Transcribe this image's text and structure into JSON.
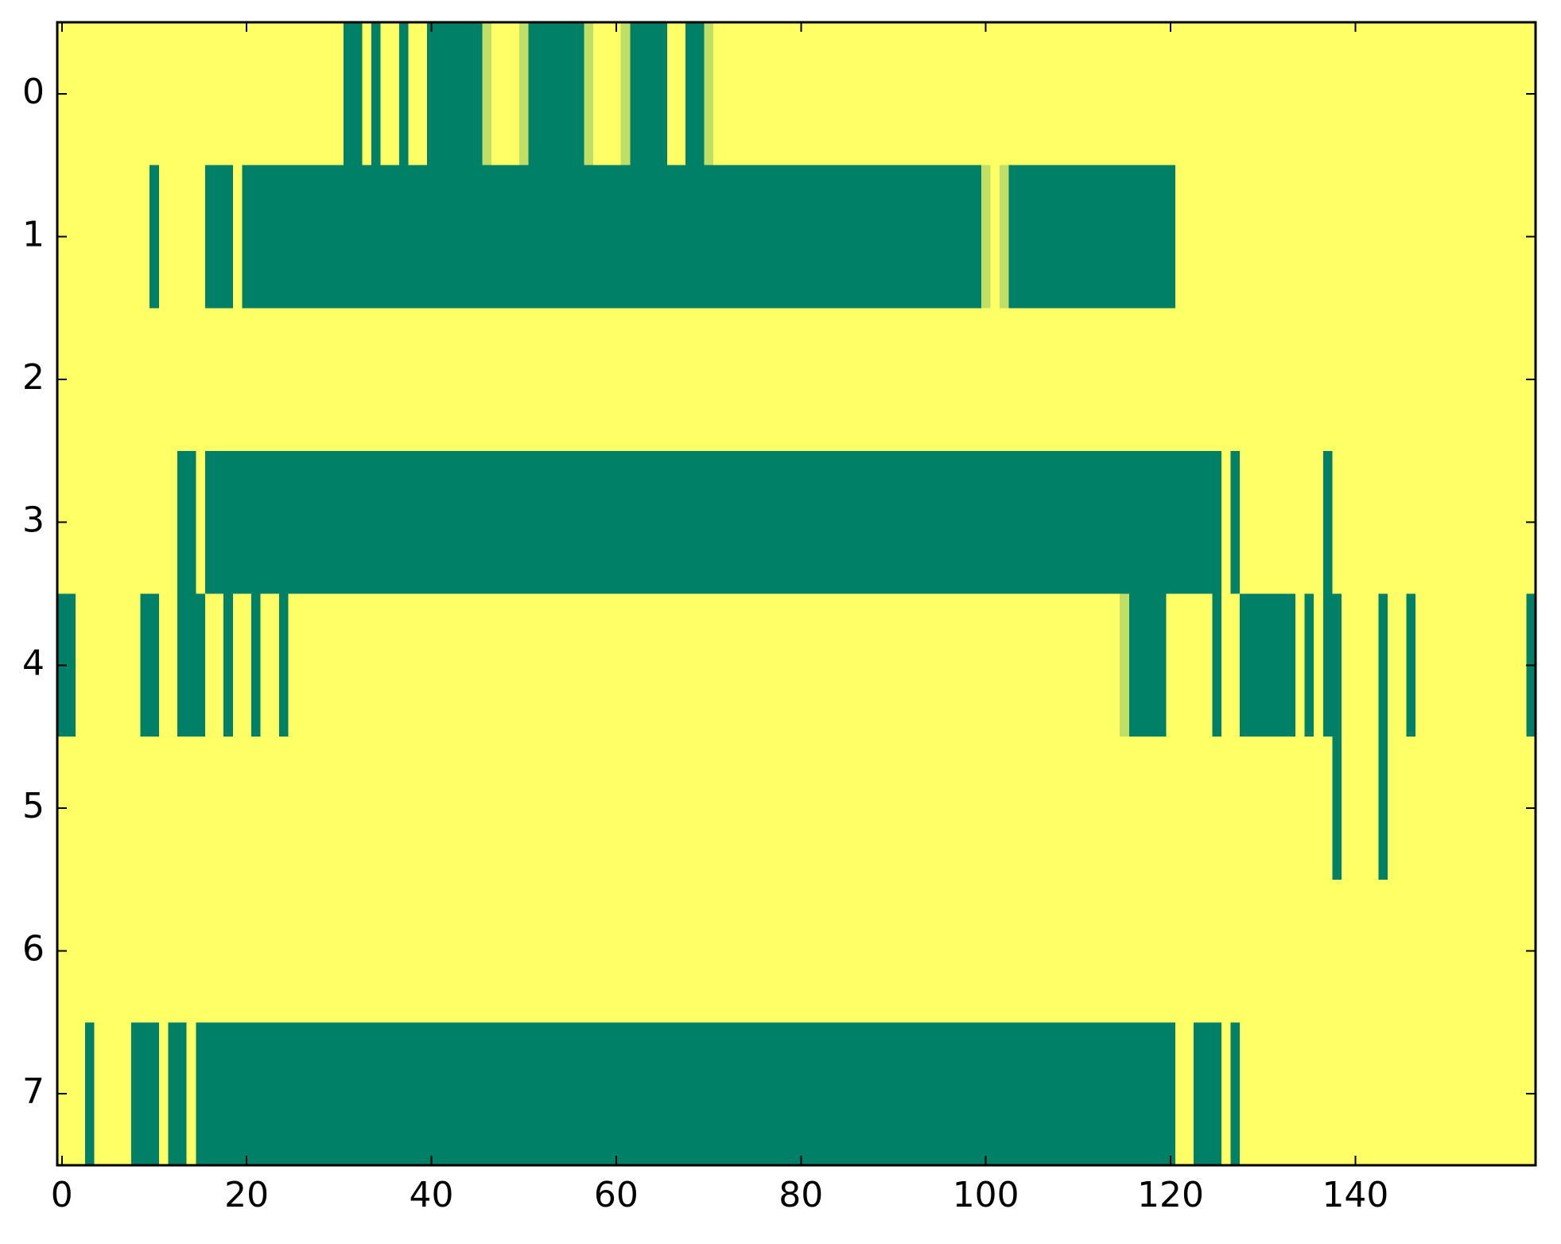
{
  "chart_data": {
    "type": "heatmap",
    "colormap": "summer",
    "xlim": [
      -0.5,
      159.5
    ],
    "ylim": [
      7.5,
      -0.5
    ],
    "xticks": [
      0,
      20,
      40,
      60,
      80,
      100,
      120,
      140
    ],
    "yticks": [
      0,
      1,
      2,
      3,
      4,
      5,
      6,
      7
    ],
    "z": [
      [
        1,
        1,
        1,
        1,
        1,
        1,
        1,
        1,
        1,
        1,
        1,
        1,
        1,
        1,
        1,
        1,
        1,
        1,
        1,
        1,
        1,
        1,
        1,
        1,
        1,
        1,
        1,
        1,
        1,
        1,
        1,
        0,
        0,
        1,
        0,
        1,
        1,
        0,
        1,
        1,
        0,
        0,
        0,
        0,
        0,
        0,
        0.75,
        1,
        1,
        1,
        0.75,
        0,
        0,
        0,
        0,
        0,
        0,
        0.75,
        1,
        1,
        1,
        0.75,
        0,
        0,
        0,
        0,
        1,
        1,
        0,
        0,
        0.75,
        1,
        1,
        1,
        1,
        1,
        1,
        1,
        1,
        1,
        1,
        1,
        1,
        1,
        1,
        1,
        1,
        1,
        1,
        1,
        1,
        1,
        1,
        1,
        1,
        1,
        1,
        1,
        1,
        1,
        1,
        1,
        1,
        1,
        1,
        1,
        1,
        1,
        1,
        1,
        1,
        1,
        1,
        1,
        1,
        1,
        1,
        1,
        1,
        1,
        1,
        1,
        1,
        1,
        1,
        1,
        1,
        1,
        1,
        1,
        1,
        1,
        1,
        1,
        1,
        1,
        1,
        1,
        1,
        1,
        1,
        1,
        1,
        1,
        1,
        1,
        1,
        1,
        1,
        1,
        1,
        1,
        1,
        1,
        1,
        1,
        1,
        1,
        1,
        1
      ],
      [
        1,
        1,
        1,
        1,
        1,
        1,
        1,
        1,
        1,
        1,
        0,
        1,
        1,
        1,
        1,
        1,
        0,
        0,
        0,
        1,
        0,
        0,
        0,
        0,
        0,
        0,
        0,
        0,
        0,
        0,
        0,
        0,
        0,
        0,
        0,
        0,
        0,
        0,
        0,
        0,
        0,
        0,
        0,
        0,
        0,
        0,
        0,
        0,
        0,
        0,
        0,
        0,
        0,
        0,
        0,
        0,
        0,
        0,
        0,
        0,
        0,
        0,
        0,
        0,
        0,
        0,
        0,
        0,
        0,
        0,
        0,
        0,
        0,
        0,
        0,
        0,
        0,
        0,
        0,
        0,
        0,
        0,
        0,
        0,
        0,
        0,
        0,
        0,
        0,
        0,
        0,
        0,
        0,
        0,
        0,
        0,
        0,
        0,
        0,
        0,
        0.75,
        1,
        0.75,
        0,
        0,
        0,
        0,
        0,
        0,
        0,
        0,
        0,
        0,
        0,
        0,
        0,
        0,
        0,
        0,
        0,
        0,
        1,
        1,
        1,
        1,
        1,
        1,
        1,
        1,
        1,
        1,
        1,
        1,
        1,
        1,
        1,
        1,
        1,
        1,
        1,
        1,
        1,
        1,
        1,
        1,
        1,
        1,
        1,
        1,
        1,
        1,
        1,
        1,
        1,
        1,
        1,
        1,
        1,
        1,
        1
      ],
      [
        1,
        1,
        1,
        1,
        1,
        1,
        1,
        1,
        1,
        1,
        1,
        1,
        1,
        1,
        1,
        1,
        1,
        1,
        1,
        1,
        1,
        1,
        1,
        1,
        1,
        1,
        1,
        1,
        1,
        1,
        1,
        1,
        1,
        1,
        1,
        1,
        1,
        1,
        1,
        1,
        1,
        1,
        1,
        1,
        1,
        1,
        1,
        1,
        1,
        1,
        1,
        1,
        1,
        1,
        1,
        1,
        1,
        1,
        1,
        1,
        1,
        1,
        1,
        1,
        1,
        1,
        1,
        1,
        1,
        1,
        1,
        1,
        1,
        1,
        1,
        1,
        1,
        1,
        1,
        1,
        1,
        1,
        1,
        1,
        1,
        1,
        1,
        1,
        1,
        1,
        1,
        1,
        1,
        1,
        1,
        1,
        1,
        1,
        1,
        1,
        1,
        1,
        1,
        1,
        1,
        1,
        1,
        1,
        1,
        1,
        1,
        1,
        1,
        1,
        1,
        1,
        1,
        1,
        1,
        1,
        1,
        1,
        1,
        1,
        1,
        1,
        1,
        1,
        1,
        1,
        1,
        1,
        1,
        1,
        1,
        1,
        1,
        1,
        1,
        1,
        1,
        1,
        1,
        1,
        1,
        1,
        1,
        1,
        1,
        1,
        1,
        1,
        1,
        1,
        1,
        1,
        1,
        1,
        1,
        1
      ],
      [
        1,
        1,
        1,
        1,
        1,
        1,
        1,
        1,
        1,
        1,
        1,
        1,
        1,
        0,
        0,
        1,
        0,
        0,
        0,
        0,
        0,
        0,
        0,
        0,
        0,
        0,
        0,
        0,
        0,
        0,
        0,
        0,
        0,
        0,
        0,
        0,
        0,
        0,
        0,
        0,
        0,
        0,
        0,
        0,
        0,
        0,
        0,
        0,
        0,
        0,
        0,
        0,
        0,
        0,
        0,
        0,
        0,
        0,
        0,
        0,
        0,
        0,
        0,
        0,
        0,
        0,
        0,
        0,
        0,
        0,
        0,
        0,
        0,
        0,
        0,
        0,
        0,
        0,
        0,
        0,
        0,
        0,
        0,
        0,
        0,
        0,
        0,
        0,
        0,
        0,
        0,
        0,
        0,
        0,
        0,
        0,
        0,
        0,
        0,
        0,
        0,
        0,
        0,
        0,
        0,
        0,
        0,
        0,
        0,
        0,
        0,
        0,
        0,
        0,
        0,
        0,
        0,
        0,
        0,
        0,
        0,
        0,
        0,
        0,
        0,
        0,
        1,
        0,
        1,
        1,
        1,
        1,
        1,
        1,
        1,
        1,
        1,
        0,
        1,
        1,
        1,
        1,
        1,
        1,
        1,
        1,
        1,
        1,
        1,
        1,
        1,
        1,
        1,
        1,
        1,
        1,
        1,
        1,
        1,
        1
      ],
      [
        0,
        0,
        1,
        1,
        1,
        1,
        1,
        1,
        1,
        0,
        0,
        1,
        1,
        0,
        0,
        0,
        1,
        1,
        0,
        1,
        1,
        0,
        1,
        1,
        0,
        1,
        1,
        1,
        1,
        1,
        1,
        1,
        1,
        1,
        1,
        1,
        1,
        1,
        1,
        1,
        1,
        1,
        1,
        1,
        1,
        1,
        1,
        1,
        1,
        1,
        1,
        1,
        1,
        1,
        1,
        1,
        1,
        1,
        1,
        1,
        1,
        1,
        1,
        1,
        1,
        1,
        1,
        1,
        1,
        1,
        1,
        1,
        1,
        1,
        1,
        1,
        1,
        1,
        1,
        1,
        1,
        1,
        1,
        1,
        1,
        1,
        1,
        1,
        1,
        1,
        1,
        1,
        1,
        1,
        1,
        1,
        1,
        1,
        1,
        1,
        1,
        1,
        1,
        1,
        1,
        1,
        1,
        1,
        1,
        1,
        1,
        1,
        1,
        1,
        1,
        0.75,
        0,
        0,
        0,
        0,
        1,
        1,
        1,
        1,
        1,
        0,
        1,
        1,
        0,
        0,
        0,
        0,
        0,
        0,
        1,
        0,
        1,
        0,
        0,
        1,
        1,
        1,
        1,
        0,
        1,
        1,
        0,
        1,
        1,
        1,
        1,
        1,
        1,
        1,
        1,
        1,
        1,
        1,
        1,
        0
      ],
      [
        1,
        1,
        1,
        1,
        1,
        1,
        1,
        1,
        1,
        1,
        1,
        1,
        1,
        1,
        1,
        1,
        1,
        1,
        1,
        1,
        1,
        1,
        1,
        1,
        1,
        1,
        1,
        1,
        1,
        1,
        1,
        1,
        1,
        1,
        1,
        1,
        1,
        1,
        1,
        1,
        1,
        1,
        1,
        1,
        1,
        1,
        1,
        1,
        1,
        1,
        1,
        1,
        1,
        1,
        1,
        1,
        1,
        1,
        1,
        1,
        1,
        1,
        1,
        1,
        1,
        1,
        1,
        1,
        1,
        1,
        1,
        1,
        1,
        1,
        1,
        1,
        1,
        1,
        1,
        1,
        1,
        1,
        1,
        1,
        1,
        1,
        1,
        1,
        1,
        1,
        1,
        1,
        1,
        1,
        1,
        1,
        1,
        1,
        1,
        1,
        1,
        1,
        1,
        1,
        1,
        1,
        1,
        1,
        1,
        1,
        1,
        1,
        1,
        1,
        1,
        1,
        1,
        1,
        1,
        1,
        1,
        1,
        1,
        1,
        1,
        1,
        1,
        1,
        1,
        1,
        1,
        1,
        1,
        1,
        1,
        1,
        1,
        1,
        0,
        1,
        1,
        1,
        1,
        0,
        1,
        1,
        1,
        1,
        1,
        1,
        1,
        1,
        1,
        1,
        1,
        1,
        1,
        1,
        1,
        1
      ],
      [
        1,
        1,
        1,
        1,
        1,
        1,
        1,
        1,
        1,
        1,
        1,
        1,
        1,
        1,
        1,
        1,
        1,
        1,
        1,
        1,
        1,
        1,
        1,
        1,
        1,
        1,
        1,
        1,
        1,
        1,
        1,
        1,
        1,
        1,
        1,
        1,
        1,
        1,
        1,
        1,
        1,
        1,
        1,
        1,
        1,
        1,
        1,
        1,
        1,
        1,
        1,
        1,
        1,
        1,
        1,
        1,
        1,
        1,
        1,
        1,
        1,
        1,
        1,
        1,
        1,
        1,
        1,
        1,
        1,
        1,
        1,
        1,
        1,
        1,
        1,
        1,
        1,
        1,
        1,
        1,
        1,
        1,
        1,
        1,
        1,
        1,
        1,
        1,
        1,
        1,
        1,
        1,
        1,
        1,
        1,
        1,
        1,
        1,
        1,
        1,
        1,
        1,
        1,
        1,
        1,
        1,
        1,
        1,
        1,
        1,
        1,
        1,
        1,
        1,
        1,
        1,
        1,
        1,
        1,
        1,
        1,
        1,
        1,
        1,
        1,
        1,
        1,
        1,
        1,
        1,
        1,
        1,
        1,
        1,
        1,
        1,
        1,
        1,
        1,
        1,
        1,
        1,
        1,
        1,
        1,
        1,
        1,
        1,
        1,
        1,
        1,
        1,
        1,
        1,
        1,
        1,
        1,
        1,
        1,
        1
      ],
      [
        1,
        1,
        1,
        0,
        1,
        1,
        1,
        1,
        0,
        0,
        0,
        1,
        0,
        0,
        1,
        0,
        0,
        0,
        0,
        0,
        0,
        0,
        0,
        0,
        0,
        0,
        0,
        0,
        0,
        0,
        0,
        0,
        0,
        0,
        0,
        0,
        0,
        0,
        0,
        0,
        0,
        0,
        0,
        0,
        0,
        0,
        0,
        0,
        0,
        0,
        0,
        0,
        0,
        0,
        0,
        0,
        0,
        0,
        0,
        0,
        0,
        0,
        0,
        0,
        0,
        0,
        0,
        0,
        0,
        0,
        0,
        0,
        0,
        0,
        0,
        0,
        0,
        0,
        0,
        0,
        0,
        0,
        0,
        0,
        0,
        0,
        0,
        0,
        0,
        0,
        0,
        0,
        0,
        0,
        0,
        0,
        0,
        0,
        0,
        0,
        0,
        0,
        0,
        0,
        0,
        0,
        0,
        0,
        0,
        0,
        0,
        0,
        0,
        0,
        0,
        0,
        0,
        0,
        0,
        0,
        0,
        1,
        1,
        0,
        0,
        0,
        1,
        0,
        1,
        1,
        1,
        1,
        1,
        1,
        1,
        1,
        1,
        1,
        1,
        1,
        1,
        1,
        1,
        1,
        1,
        1,
        1,
        1,
        1,
        1,
        1,
        1,
        1,
        1,
        1,
        1,
        1,
        1,
        1,
        1
      ]
    ]
  }
}
